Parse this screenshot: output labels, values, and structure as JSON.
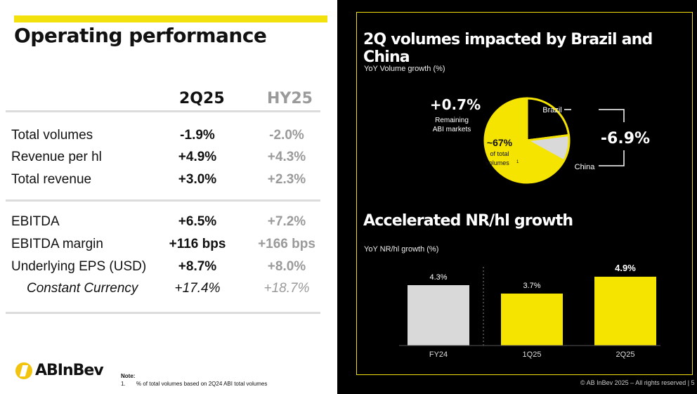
{
  "left": {
    "title": "Operating performance",
    "columns": [
      "2Q25",
      "HY25"
    ],
    "group1": [
      {
        "label": "Total volumes",
        "q": "-1.9%",
        "hy": "-2.0%"
      },
      {
        "label": "Revenue per hl",
        "q": "+4.9%",
        "hy": "+4.3%"
      },
      {
        "label": "Total revenue",
        "q": "+3.0%",
        "hy": "+2.3%"
      }
    ],
    "group2": [
      {
        "label": "EBITDA",
        "q": "+6.5%",
        "hy": "+7.2%"
      },
      {
        "label": "EBITDA margin",
        "q": "+116 bps",
        "hy": "+166 bps"
      },
      {
        "label": "Underlying EPS (USD)",
        "q": "+8.7%",
        "hy": "+8.0%"
      },
      {
        "label": "Constant Currency",
        "q": "+17.4%",
        "hy": "+18.7%"
      }
    ],
    "logo": "ABInBev",
    "note_title": "Note:",
    "note_num": "1.",
    "note_text": "% of total volumes based on 2Q24 ABI total volumes"
  },
  "right": {
    "title": "2Q volumes impacted by Brazil and China",
    "subtitle": "YoY Volume growth (%)",
    "remaining_value": "+0.7%",
    "remaining_label1": "Remaining",
    "remaining_label2": "ABI markets",
    "pie_pct": "~67%",
    "pie_label1": "of total",
    "pie_label2": "volumes",
    "pie_sup": "1",
    "brazil_label": "Brazil",
    "china_label": "China",
    "combined_value": "-6.9%",
    "title2": "Accelerated NR/hl growth",
    "subtitle2": "YoY NR/hl growth (%)",
    "copyright": "© AB InBev 2025 – All rights reserved | 5",
    "colors": {
      "yellow": "#f2e10d",
      "grey": "#d9d9d9",
      "bright_yellow": "#f5e400"
    }
  },
  "chart_data": [
    {
      "type": "pie",
      "title": "YoY Volume growth (%)",
      "slices": [
        {
          "name": "Remaining ABI markets",
          "share": 67,
          "growth": "+0.7%"
        },
        {
          "name": "Brazil",
          "share": 23
        },
        {
          "name": "China",
          "share": 10
        }
      ],
      "annotation": "-6.9%"
    },
    {
      "type": "bar",
      "title": "YoY NR/hl growth (%)",
      "categories": [
        "FY24",
        "1Q25",
        "2Q25"
      ],
      "values": [
        4.3,
        3.7,
        4.9
      ],
      "labels": [
        "4.3%",
        "3.7%",
        "4.9%"
      ],
      "ylim": [
        0,
        5
      ]
    }
  ]
}
